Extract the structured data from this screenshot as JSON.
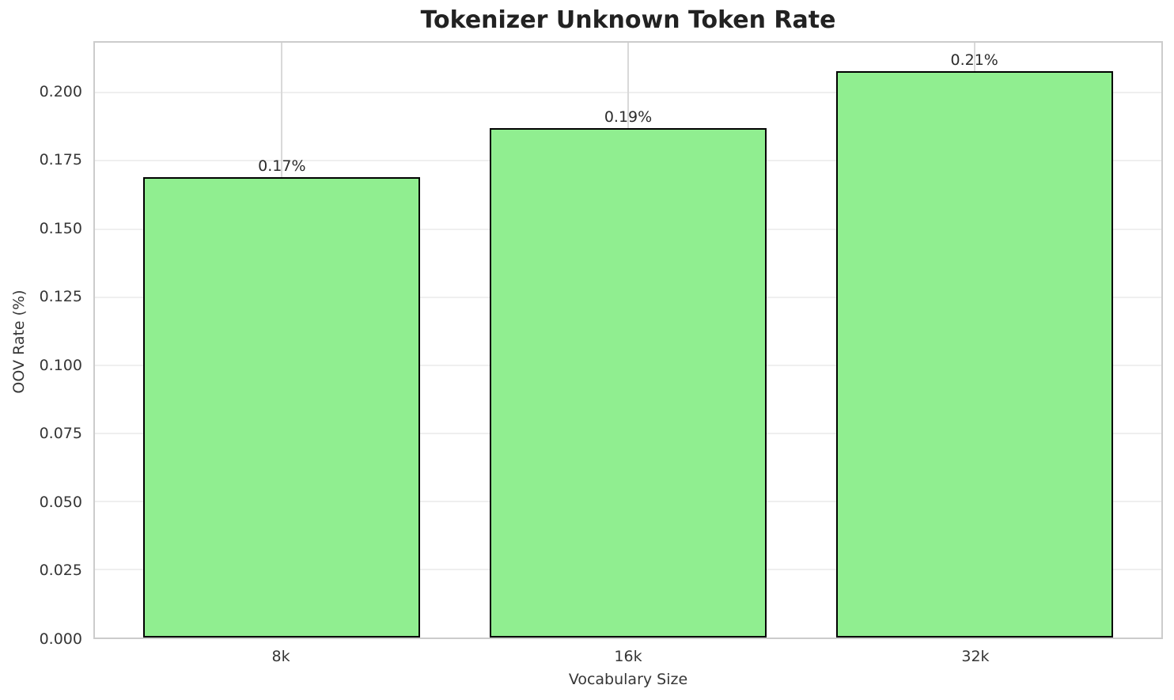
{
  "chart_data": {
    "type": "bar",
    "title": "Tokenizer Unknown Token Rate",
    "xlabel": "Vocabulary Size",
    "ylabel": "OOV Rate (%)",
    "categories": [
      "8k",
      "16k",
      "32k"
    ],
    "values": [
      0.169,
      0.187,
      0.208
    ],
    "bar_labels": [
      "0.17%",
      "0.19%",
      "0.21%"
    ],
    "ytick_labels": [
      "0.000",
      "0.025",
      "0.050",
      "0.075",
      "0.100",
      "0.125",
      "0.150",
      "0.175",
      "0.200"
    ],
    "ytick_values": [
      0,
      0.025,
      0.05,
      0.075,
      0.1,
      0.125,
      0.15,
      0.175,
      0.2
    ],
    "ylim": [
      0,
      0.2184
    ],
    "xlim": [
      -0.54,
      2.54
    ],
    "bar_width": 0.8,
    "grid": true,
    "legend": null,
    "colors": {
      "bar_fill": "#90ee90",
      "bar_edge": "#000000",
      "spine": "#cccccc",
      "grid_horizontal": "#efefef",
      "grid_vertical": "#d9d9d9",
      "tick_text": "#363636",
      "title_text": "#222222",
      "background": "#ffffff"
    }
  }
}
